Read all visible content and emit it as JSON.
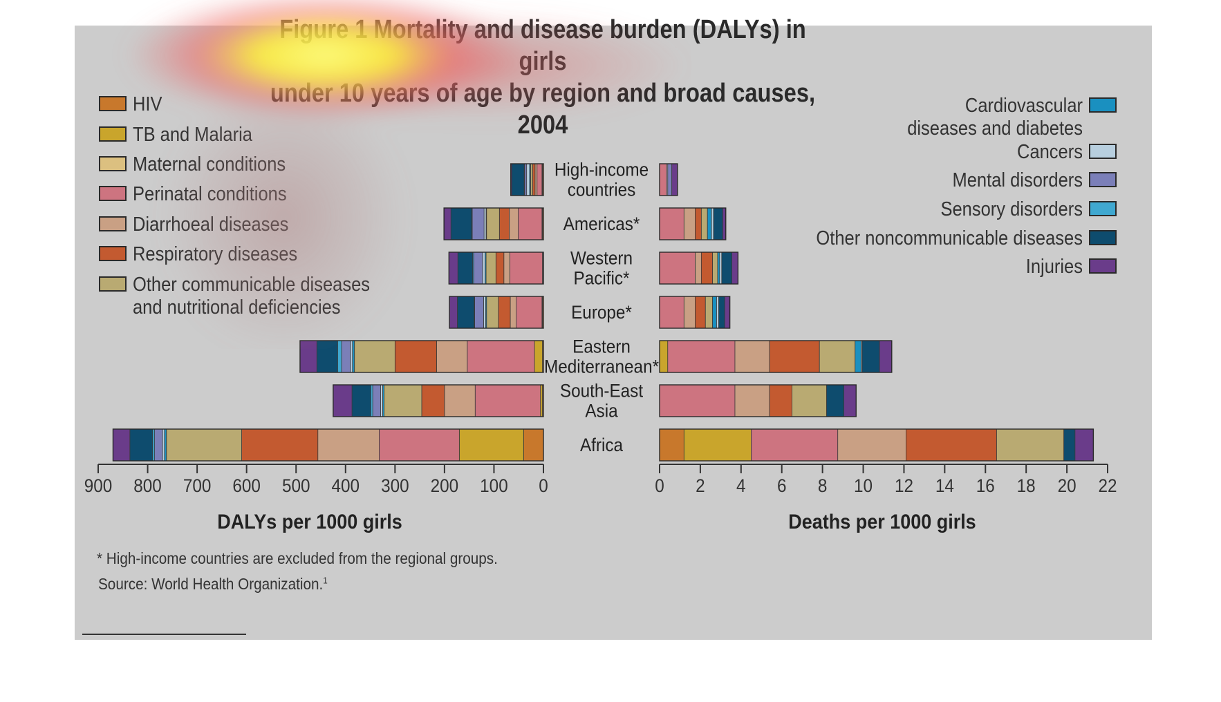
{
  "title": {
    "line1": "Figure 1 Mortality and disease burden (DALYs) in girls",
    "line2": "under 10 years of age by region and broad causes, 2004"
  },
  "footnote": "* High-income countries are excluded from the regional groups.",
  "source": "Source: World Health Organization.",
  "source_ref": "1",
  "colors": {
    "hiv": "#c8782c",
    "tb_malaria": "#c9a52c",
    "maternal": "#dcc080",
    "perinatal": "#cd7480",
    "diarrhoeal": "#c9a084",
    "respiratory": "#c35a30",
    "other_communicable": "#b9aa72",
    "cardiovascular": "#1a90c0",
    "cancers": "#b8cfdf",
    "mental": "#7b7fb8",
    "sensory": "#40a8d0",
    "other_noncommunicable": "#0e4c6e",
    "injuries": "#6a3c8a"
  },
  "chart_data": [
    {
      "type": "bar",
      "orientation": "horizontal-stacked",
      "xlabel": "DALYs per 1000 girls",
      "xlim": [
        0,
        900
      ],
      "x_reversed": true,
      "xticks": [
        900,
        800,
        700,
        600,
        500,
        400,
        300,
        200,
        100,
        0
      ],
      "legend_position": "top-left and top-right",
      "categories": [
        "High-income countries",
        "Americas*",
        "Western Pacific*",
        "Europe*",
        "Eastern Mediterranean*",
        "South-East Asia",
        "Africa"
      ],
      "series": [
        {
          "name": "HIV",
          "key": "hiv",
          "values": [
            2,
            2,
            1,
            2,
            2,
            2,
            40
          ]
        },
        {
          "name": "TB and Malaria",
          "key": "tb_malaria",
          "values": [
            1,
            1,
            1,
            1,
            16,
            4,
            130
          ]
        },
        {
          "name": "Perinatal conditions",
          "key": "perinatal",
          "values": [
            10,
            48,
            66,
            52,
            136,
            132,
            162
          ]
        },
        {
          "name": "Maternal conditions",
          "key": "maternal",
          "values": [
            0,
            0,
            0,
            0,
            0,
            0,
            0
          ]
        },
        {
          "name": "Diarrhoeal diseases",
          "key": "diarrhoeal",
          "values": [
            4,
            18,
            12,
            12,
            62,
            62,
            124
          ]
        },
        {
          "name": "Respiratory diseases",
          "key": "respiratory",
          "values": [
            5,
            20,
            16,
            24,
            84,
            46,
            154
          ]
        },
        {
          "name": "Other communicable diseases and nutritional deficiencies",
          "key": "other_communicable",
          "values": [
            4,
            26,
            20,
            24,
            82,
            76,
            152
          ]
        },
        {
          "name": "Cardiovascular diseases and diabetes",
          "key": "cardiovascular",
          "values": [
            2,
            1,
            2,
            2,
            4,
            3,
            4
          ]
        },
        {
          "name": "Cancers",
          "key": "cancers",
          "values": [
            6,
            4,
            5,
            4,
            4,
            4,
            4
          ]
        },
        {
          "name": "Mental disorders",
          "key": "mental",
          "values": [
            4,
            24,
            18,
            18,
            18,
            16,
            16
          ]
        },
        {
          "name": "Sensory disorders",
          "key": "sensory",
          "values": [
            1,
            1,
            2,
            1,
            8,
            4,
            4
          ]
        },
        {
          "name": "Other noncommunicable diseases",
          "key": "other_noncommunicable",
          "values": [
            25,
            42,
            30,
            34,
            42,
            38,
            46
          ]
        },
        {
          "name": "Injuries",
          "key": "injuries",
          "values": [
            2,
            14,
            18,
            16,
            34,
            38,
            34
          ]
        }
      ]
    },
    {
      "type": "bar",
      "orientation": "horizontal-stacked",
      "xlabel": "Deaths per 1000 girls",
      "xlim": [
        0,
        22
      ],
      "xticks": [
        0,
        2,
        4,
        6,
        8,
        10,
        12,
        14,
        16,
        18,
        20,
        22
      ],
      "categories": [
        "High-income countries",
        "Americas*",
        "Western Pacific*",
        "Europe*",
        "Eastern Mediterranean*",
        "South-East Asia",
        "Africa"
      ],
      "series": [
        {
          "name": "HIV",
          "key": "hiv",
          "values": [
            0,
            0,
            0,
            0,
            0,
            0,
            1.2
          ]
        },
        {
          "name": "TB and Malaria",
          "key": "tb_malaria",
          "values": [
            0,
            0,
            0,
            0,
            0.4,
            0,
            3.3
          ]
        },
        {
          "name": "Perinatal conditions",
          "key": "perinatal",
          "values": [
            0.35,
            1.2,
            1.75,
            1.2,
            3.3,
            3.7,
            4.25
          ]
        },
        {
          "name": "Maternal conditions",
          "key": "maternal",
          "values": [
            0,
            0,
            0,
            0,
            0,
            0,
            0
          ]
        },
        {
          "name": "Diarrhoeal diseases",
          "key": "diarrhoeal",
          "values": [
            0,
            0.55,
            0.3,
            0.55,
            1.7,
            1.7,
            3.35
          ]
        },
        {
          "name": "Respiratory diseases",
          "key": "respiratory",
          "values": [
            0,
            0.3,
            0.55,
            0.5,
            2.45,
            1.1,
            4.45
          ]
        },
        {
          "name": "Other communicable diseases and nutritional deficiencies",
          "key": "other_communicable",
          "values": [
            0,
            0.3,
            0.25,
            0.35,
            1.75,
            1.7,
            3.3
          ]
        },
        {
          "name": "Cardiovascular diseases and diabetes",
          "key": "cardiovascular",
          "values": [
            0,
            0.2,
            0.1,
            0.2,
            0.3,
            0,
            0
          ]
        },
        {
          "name": "Cancers",
          "key": "cancers",
          "values": [
            0.05,
            0.1,
            0.1,
            0.1,
            0.05,
            0,
            0
          ]
        },
        {
          "name": "Mental disorders",
          "key": "mental",
          "values": [
            0.2,
            0,
            0,
            0,
            0,
            0,
            0
          ]
        },
        {
          "name": "Sensory disorders",
          "key": "sensory",
          "values": [
            0,
            0,
            0,
            0,
            0,
            0,
            0
          ]
        },
        {
          "name": "Other noncommunicable diseases",
          "key": "other_noncommunicable",
          "values": [
            0,
            0.45,
            0.5,
            0.3,
            0.85,
            0.85,
            0.55
          ]
        },
        {
          "name": "Injuries",
          "key": "injuries",
          "values": [
            0.28,
            0.15,
            0.3,
            0.25,
            0.6,
            0.6,
            0.9
          ]
        }
      ]
    }
  ],
  "legend": {
    "left": [
      {
        "key": "hiv",
        "lines": [
          "HIV"
        ]
      },
      {
        "key": "tb_malaria",
        "lines": [
          "TB and Malaria"
        ]
      },
      {
        "key": "maternal",
        "lines": [
          "Maternal conditions"
        ]
      },
      {
        "key": "perinatal",
        "lines": [
          "Perinatal conditions"
        ]
      },
      {
        "key": "diarrhoeal",
        "lines": [
          "Diarrhoeal diseases"
        ]
      },
      {
        "key": "respiratory",
        "lines": [
          "Respiratory diseases"
        ]
      },
      {
        "key": "other_communicable",
        "lines": [
          "Other communicable diseases",
          "and nutritional deficiencies"
        ]
      }
    ],
    "right": [
      {
        "key": "cardiovascular",
        "lines": [
          "Cardiovascular",
          "diseases and diabetes"
        ]
      },
      {
        "key": "cancers",
        "lines": [
          "Cancers"
        ]
      },
      {
        "key": "mental",
        "lines": [
          "Mental disorders"
        ]
      },
      {
        "key": "sensory",
        "lines": [
          "Sensory disorders"
        ]
      },
      {
        "key": "other_noncommunicable",
        "lines": [
          "Other noncommunicable diseases"
        ]
      },
      {
        "key": "injuries",
        "lines": [
          "Injuries"
        ]
      }
    ]
  },
  "region_labels": [
    [
      "High-income",
      "countries"
    ],
    [
      "Americas*"
    ],
    [
      "Western",
      "Pacific*"
    ],
    [
      "Europe*"
    ],
    [
      "Eastern",
      "Mediterranean*"
    ],
    [
      "South-East",
      "Asia"
    ],
    [
      "Africa"
    ]
  ]
}
